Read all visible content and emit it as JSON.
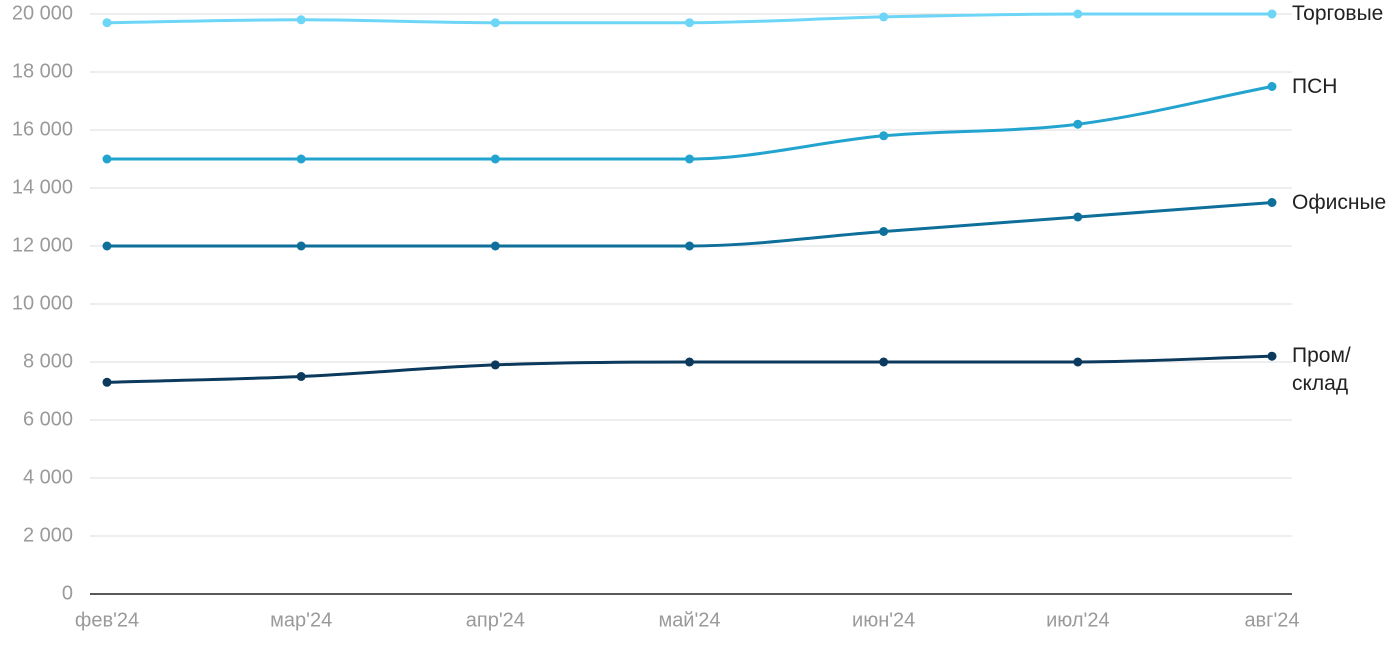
{
  "chart_data": {
    "type": "line",
    "categories": [
      "фев'24",
      "мар'24",
      "апр'24",
      "май'24",
      "июн'24",
      "июл'24",
      "авг'24"
    ],
    "series": [
      {
        "name": "Торговые",
        "color": "#6dd5f5",
        "values": [
          19700,
          19800,
          19700,
          19700,
          19900,
          20000,
          20000
        ]
      },
      {
        "name": "ПСН",
        "color": "#22a4cf",
        "values": [
          15000,
          15000,
          15000,
          15000,
          15800,
          16200,
          17500
        ]
      },
      {
        "name": "Офисные",
        "color": "#0e6f9a",
        "values": [
          12000,
          12000,
          12000,
          12000,
          12500,
          13000,
          13500
        ]
      },
      {
        "name": "Пром/\nсклад",
        "color": "#0b3a5c",
        "values": [
          7300,
          7500,
          7900,
          8000,
          8000,
          8000,
          8200
        ]
      }
    ],
    "ylim": [
      0,
      20000
    ],
    "yticks": [
      0,
      {
        "value": 2000,
        "label": "2 000"
      },
      {
        "value": 4000,
        "label": "4 000"
      },
      {
        "value": 6000,
        "label": "6 000"
      },
      {
        "value": 8000,
        "label": "8 000"
      },
      {
        "value": 10000,
        "label": "10 000"
      },
      {
        "value": 12000,
        "label": "12 000"
      },
      {
        "value": 14000,
        "label": "14 000"
      },
      {
        "value": 16000,
        "label": "16 000"
      },
      {
        "value": 18000,
        "label": "18 000"
      },
      {
        "value": 20000,
        "label": "20 000"
      }
    ],
    "grid": true,
    "legend": "line-end"
  }
}
